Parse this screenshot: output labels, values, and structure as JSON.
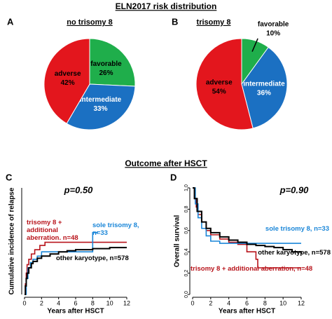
{
  "headings": [
    "ELN2017 risk distribution",
    "Outcome after HSCT"
  ],
  "chart_data": [
    {
      "type": "pie",
      "panel": "A",
      "title": "no trisomy 8",
      "categories": [
        "favorable",
        "intermediate",
        "adverse"
      ],
      "values": [
        26,
        33,
        42
      ],
      "value_labels": [
        "26%",
        "33%",
        "42%"
      ],
      "colors": [
        "#1fae4b",
        "#1b70c2",
        "#e3161d"
      ]
    },
    {
      "type": "pie",
      "panel": "B",
      "title": "trisomy 8",
      "categories": [
        "favorable",
        "intermediate",
        "adverse"
      ],
      "values": [
        10,
        36,
        54
      ],
      "value_labels": [
        "10%",
        "36%",
        "54%"
      ],
      "colors": [
        "#1fae4b",
        "#1b70c2",
        "#e3161d"
      ]
    },
    {
      "type": "step",
      "panel": "C",
      "annotation": "p=0.50",
      "xlabel": "Years after HSCT",
      "ylabel": "Cumulative incidence of relapse",
      "xlim": [
        0,
        12
      ],
      "xticks": [
        0,
        2,
        4,
        6,
        8,
        10,
        12
      ],
      "ylim": [
        0,
        1
      ],
      "series": [
        {
          "name": "trisomy 8 + additional aberration, n=48",
          "color": "#b8141b",
          "x": [
            0,
            0.1,
            0.2,
            0.3,
            0.5,
            0.8,
            1.2,
            1.8,
            2.4,
            12
          ],
          "values": [
            0,
            0.1,
            0.2,
            0.28,
            0.33,
            0.38,
            0.42,
            0.46,
            0.49,
            0.49
          ]
        },
        {
          "name": "sole trisomy 8, n=33",
          "color": "#1a86d8",
          "x": [
            0,
            0.2,
            0.4,
            0.7,
            1,
            1.5,
            2,
            8,
            8.6
          ],
          "values": [
            0,
            0.15,
            0.25,
            0.3,
            0.33,
            0.36,
            0.4,
            0.58,
            0.58
          ]
        },
        {
          "name": "other karyotype, n=578",
          "color": "#000000",
          "x": [
            0,
            0.1,
            0.2,
            0.3,
            0.5,
            0.8,
            1,
            1.5,
            2,
            3,
            4,
            5,
            6,
            8,
            10,
            12
          ],
          "values": [
            0,
            0.08,
            0.15,
            0.2,
            0.25,
            0.29,
            0.31,
            0.34,
            0.36,
            0.38,
            0.4,
            0.41,
            0.42,
            0.43,
            0.44,
            0.44
          ]
        }
      ]
    },
    {
      "type": "step",
      "panel": "D",
      "annotation": "p=0.90",
      "xlabel": "Years after HSCT",
      "ylabel": "Overall survival",
      "xlim": [
        0,
        12
      ],
      "xticks": [
        0,
        2,
        4,
        6,
        8,
        10,
        12
      ],
      "ylim": [
        0,
        1
      ],
      "yticks": [
        {
          "value": 0,
          "label": "0.0"
        },
        0.2,
        0.4,
        0.6,
        0.8,
        {
          "value": 1,
          "label": "1.0"
        }
      ],
      "series": [
        {
          "name": "trisomy 8 + additional aberration, n=48",
          "color": "#b8141b",
          "x": [
            0,
            0.2,
            0.4,
            0.6,
            1,
            1.5,
            2,
            3,
            4,
            5,
            6,
            7,
            7.2,
            12
          ],
          "values": [
            1,
            0.9,
            0.82,
            0.75,
            0.68,
            0.6,
            0.56,
            0.52,
            0.49,
            0.47,
            0.4,
            0.33,
            0.25,
            0.25
          ]
        },
        {
          "name": "sole trisomy 8, n=33",
          "color": "#1a86d8",
          "x": [
            0,
            0.3,
            0.6,
            1,
            1.5,
            2,
            3,
            12
          ],
          "values": [
            1,
            0.85,
            0.72,
            0.62,
            0.55,
            0.5,
            0.48,
            0.48
          ]
        },
        {
          "name": "other karyotype, n=578",
          "color": "#000000",
          "x": [
            0,
            0.2,
            0.5,
            1,
            1.5,
            2,
            3,
            4,
            5,
            6,
            7,
            8,
            9,
            10,
            11,
            12
          ],
          "values": [
            1,
            0.9,
            0.78,
            0.68,
            0.62,
            0.58,
            0.54,
            0.51,
            0.49,
            0.47,
            0.46,
            0.45,
            0.44,
            0.42,
            0.4,
            0.38
          ]
        }
      ]
    }
  ]
}
